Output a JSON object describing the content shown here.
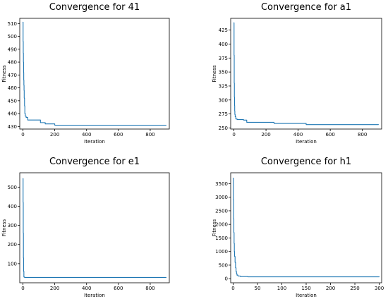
{
  "chart_data": [
    {
      "type": "line",
      "title": "Convergence for 41",
      "xlabel": "Iteration",
      "ylabel": "Fitness",
      "xlim": [
        -20,
        920
      ],
      "ylim": [
        428,
        514
      ],
      "xticks": [
        0,
        200,
        400,
        600,
        800
      ],
      "yticks": [
        430,
        440,
        450,
        460,
        470,
        480,
        490,
        500,
        510
      ],
      "color": "#1f77b4",
      "series": [
        {
          "x": [
            0,
            1,
            1,
            2,
            2,
            3,
            3,
            4,
            4,
            5,
            5,
            6,
            6,
            7,
            7,
            8,
            8,
            10,
            10,
            12,
            12,
            15,
            15,
            20,
            20,
            30,
            30,
            60,
            60,
            110,
            110,
            140,
            140,
            160,
            160,
            200,
            200,
            260,
            260,
            900
          ],
          "y": [
            511,
            511,
            496,
            496,
            487,
            487,
            480,
            480,
            472,
            472,
            466,
            466,
            462,
            462,
            458,
            458,
            452,
            452,
            446,
            446,
            440,
            440,
            438,
            438,
            437,
            437,
            435,
            435,
            435,
            435,
            433,
            433,
            432,
            432,
            432,
            432,
            431,
            431,
            431,
            431
          ]
        }
      ]
    },
    {
      "type": "line",
      "title": "Convergence for a1",
      "xlabel": "Iteration",
      "ylabel": "Fitness",
      "xlim": [
        -20,
        920
      ],
      "ylim": [
        248,
        446
      ],
      "xticks": [
        0,
        200,
        400,
        600,
        800
      ],
      "yticks": [
        250,
        275,
        300,
        325,
        350,
        375,
        400,
        425
      ],
      "color": "#1f77b4",
      "series": [
        {
          "x": [
            0,
            1,
            1,
            2,
            2,
            3,
            3,
            4,
            4,
            5,
            5,
            6,
            6,
            8,
            8,
            12,
            12,
            20,
            20,
            60,
            60,
            80,
            80,
            250,
            250,
            450,
            450,
            900
          ],
          "y": [
            438,
            438,
            380,
            380,
            330,
            330,
            305,
            305,
            290,
            290,
            280,
            280,
            274,
            274,
            270,
            270,
            266,
            266,
            265,
            265,
            264,
            264,
            260,
            260,
            258,
            258,
            256,
            256
          ]
        }
      ]
    },
    {
      "type": "line",
      "title": "Convergence for e1",
      "xlabel": "Iteration",
      "ylabel": "Fitness",
      "xlim": [
        -20,
        920
      ],
      "ylim": [
        0,
        575
      ],
      "xticks": [
        0,
        200,
        400,
        600,
        800
      ],
      "yticks": [
        100,
        200,
        300,
        400,
        500
      ],
      "color": "#1f77b4",
      "series": [
        {
          "x": [
            0,
            1,
            1,
            2,
            2,
            3,
            3,
            4,
            4,
            6,
            6,
            10,
            10,
            900
          ],
          "y": [
            545,
            545,
            420,
            420,
            260,
            260,
            130,
            130,
            60,
            60,
            30,
            30,
            28,
            28
          ]
        }
      ]
    },
    {
      "type": "line",
      "title": "Convergence for h1",
      "xlabel": "Iteration",
      "ylabel": "Fitness",
      "xlim": [
        -5,
        305
      ],
      "ylim": [
        -150,
        3900
      ],
      "xticks": [
        0,
        50,
        100,
        150,
        200,
        250,
        300
      ],
      "yticks": [
        0,
        500,
        1000,
        1500,
        2000,
        2500,
        3000,
        3500
      ],
      "color": "#1f77b4",
      "series": [
        {
          "x": [
            0,
            0.5,
            0.5,
            1,
            1,
            1.5,
            1.5,
            2,
            2,
            2.5,
            2.5,
            3,
            3,
            4,
            4,
            5,
            5,
            6,
            6,
            7,
            7,
            8,
            8,
            10,
            10,
            15,
            15,
            30,
            30,
            300
          ],
          "y": [
            3700,
            3700,
            2900,
            2900,
            2200,
            2200,
            1700,
            1700,
            1300,
            1300,
            1000,
            1000,
            820,
            820,
            600,
            600,
            400,
            400,
            260,
            260,
            180,
            180,
            130,
            130,
            100,
            100,
            80,
            80,
            70,
            70
          ]
        }
      ]
    }
  ]
}
